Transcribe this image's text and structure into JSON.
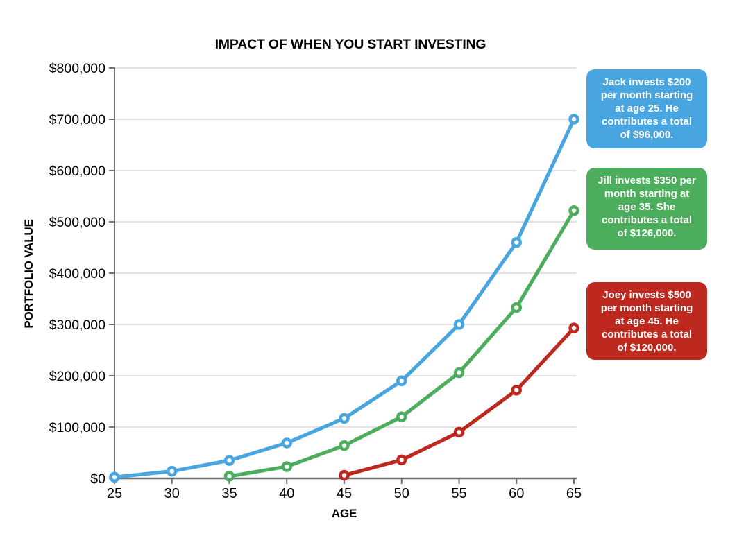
{
  "chart_data": {
    "type": "line",
    "title": "IMPACT OF WHEN YOU START INVESTING",
    "xlabel": "AGE",
    "ylabel": "PORTFOLIO VALUE",
    "xlim": [
      25,
      65
    ],
    "ylim": [
      0,
      800000
    ],
    "grid": "horizontal",
    "legend_position": "none",
    "grid_color": "#d9d9d9",
    "axis_color": "#6e6e6e",
    "x_ticks": [
      25,
      30,
      35,
      40,
      45,
      50,
      55,
      60,
      65
    ],
    "y_ticks": [
      {
        "value": 0,
        "label": "$0"
      },
      {
        "value": 100000,
        "label": "$100,000"
      },
      {
        "value": 200000,
        "label": "$200,000"
      },
      {
        "value": 300000,
        "label": "$300,000"
      },
      {
        "value": 400000,
        "label": "$400,000"
      },
      {
        "value": 500000,
        "label": "$500,000"
      },
      {
        "value": 600000,
        "label": "$600,000"
      },
      {
        "value": 700000,
        "label": "$700,000"
      },
      {
        "value": 800000,
        "label": "$800,000"
      }
    ],
    "series": [
      {
        "name": "Jack",
        "color": "#48a5e0",
        "x": [
          25,
          30,
          35,
          40,
          45,
          50,
          55,
          60,
          65
        ],
        "values": [
          2400,
          14000,
          35000,
          69000,
          117000,
          190000,
          300000,
          460000,
          700000
        ]
      },
      {
        "name": "Jill",
        "color": "#4cae5c",
        "x": [
          35,
          40,
          45,
          50,
          55,
          60,
          65
        ],
        "values": [
          4200,
          23000,
          64000,
          120000,
          206000,
          333000,
          522000
        ]
      },
      {
        "name": "Joey",
        "color": "#bd291f",
        "x": [
          45,
          50,
          55,
          60,
          65
        ],
        "values": [
          6000,
          36000,
          90000,
          172000,
          293000
        ]
      }
    ],
    "annotations": [
      {
        "series": "Jack",
        "color": "#48a5e0",
        "lines": [
          "Jack invests $200",
          "per month starting",
          "at age 25. He",
          "contributes a total",
          "of $96,000."
        ]
      },
      {
        "series": "Jill",
        "color": "#4cae5c",
        "lines": [
          "Jill invests $350 per",
          "month starting at",
          "age 35. She",
          "contributes a total",
          "of $126,000."
        ]
      },
      {
        "series": "Joey",
        "color": "#bd291f",
        "lines": [
          "Joey invests $500",
          "per month starting",
          "at age 45. He",
          "contributes a total",
          "of $120,000."
        ]
      }
    ]
  }
}
